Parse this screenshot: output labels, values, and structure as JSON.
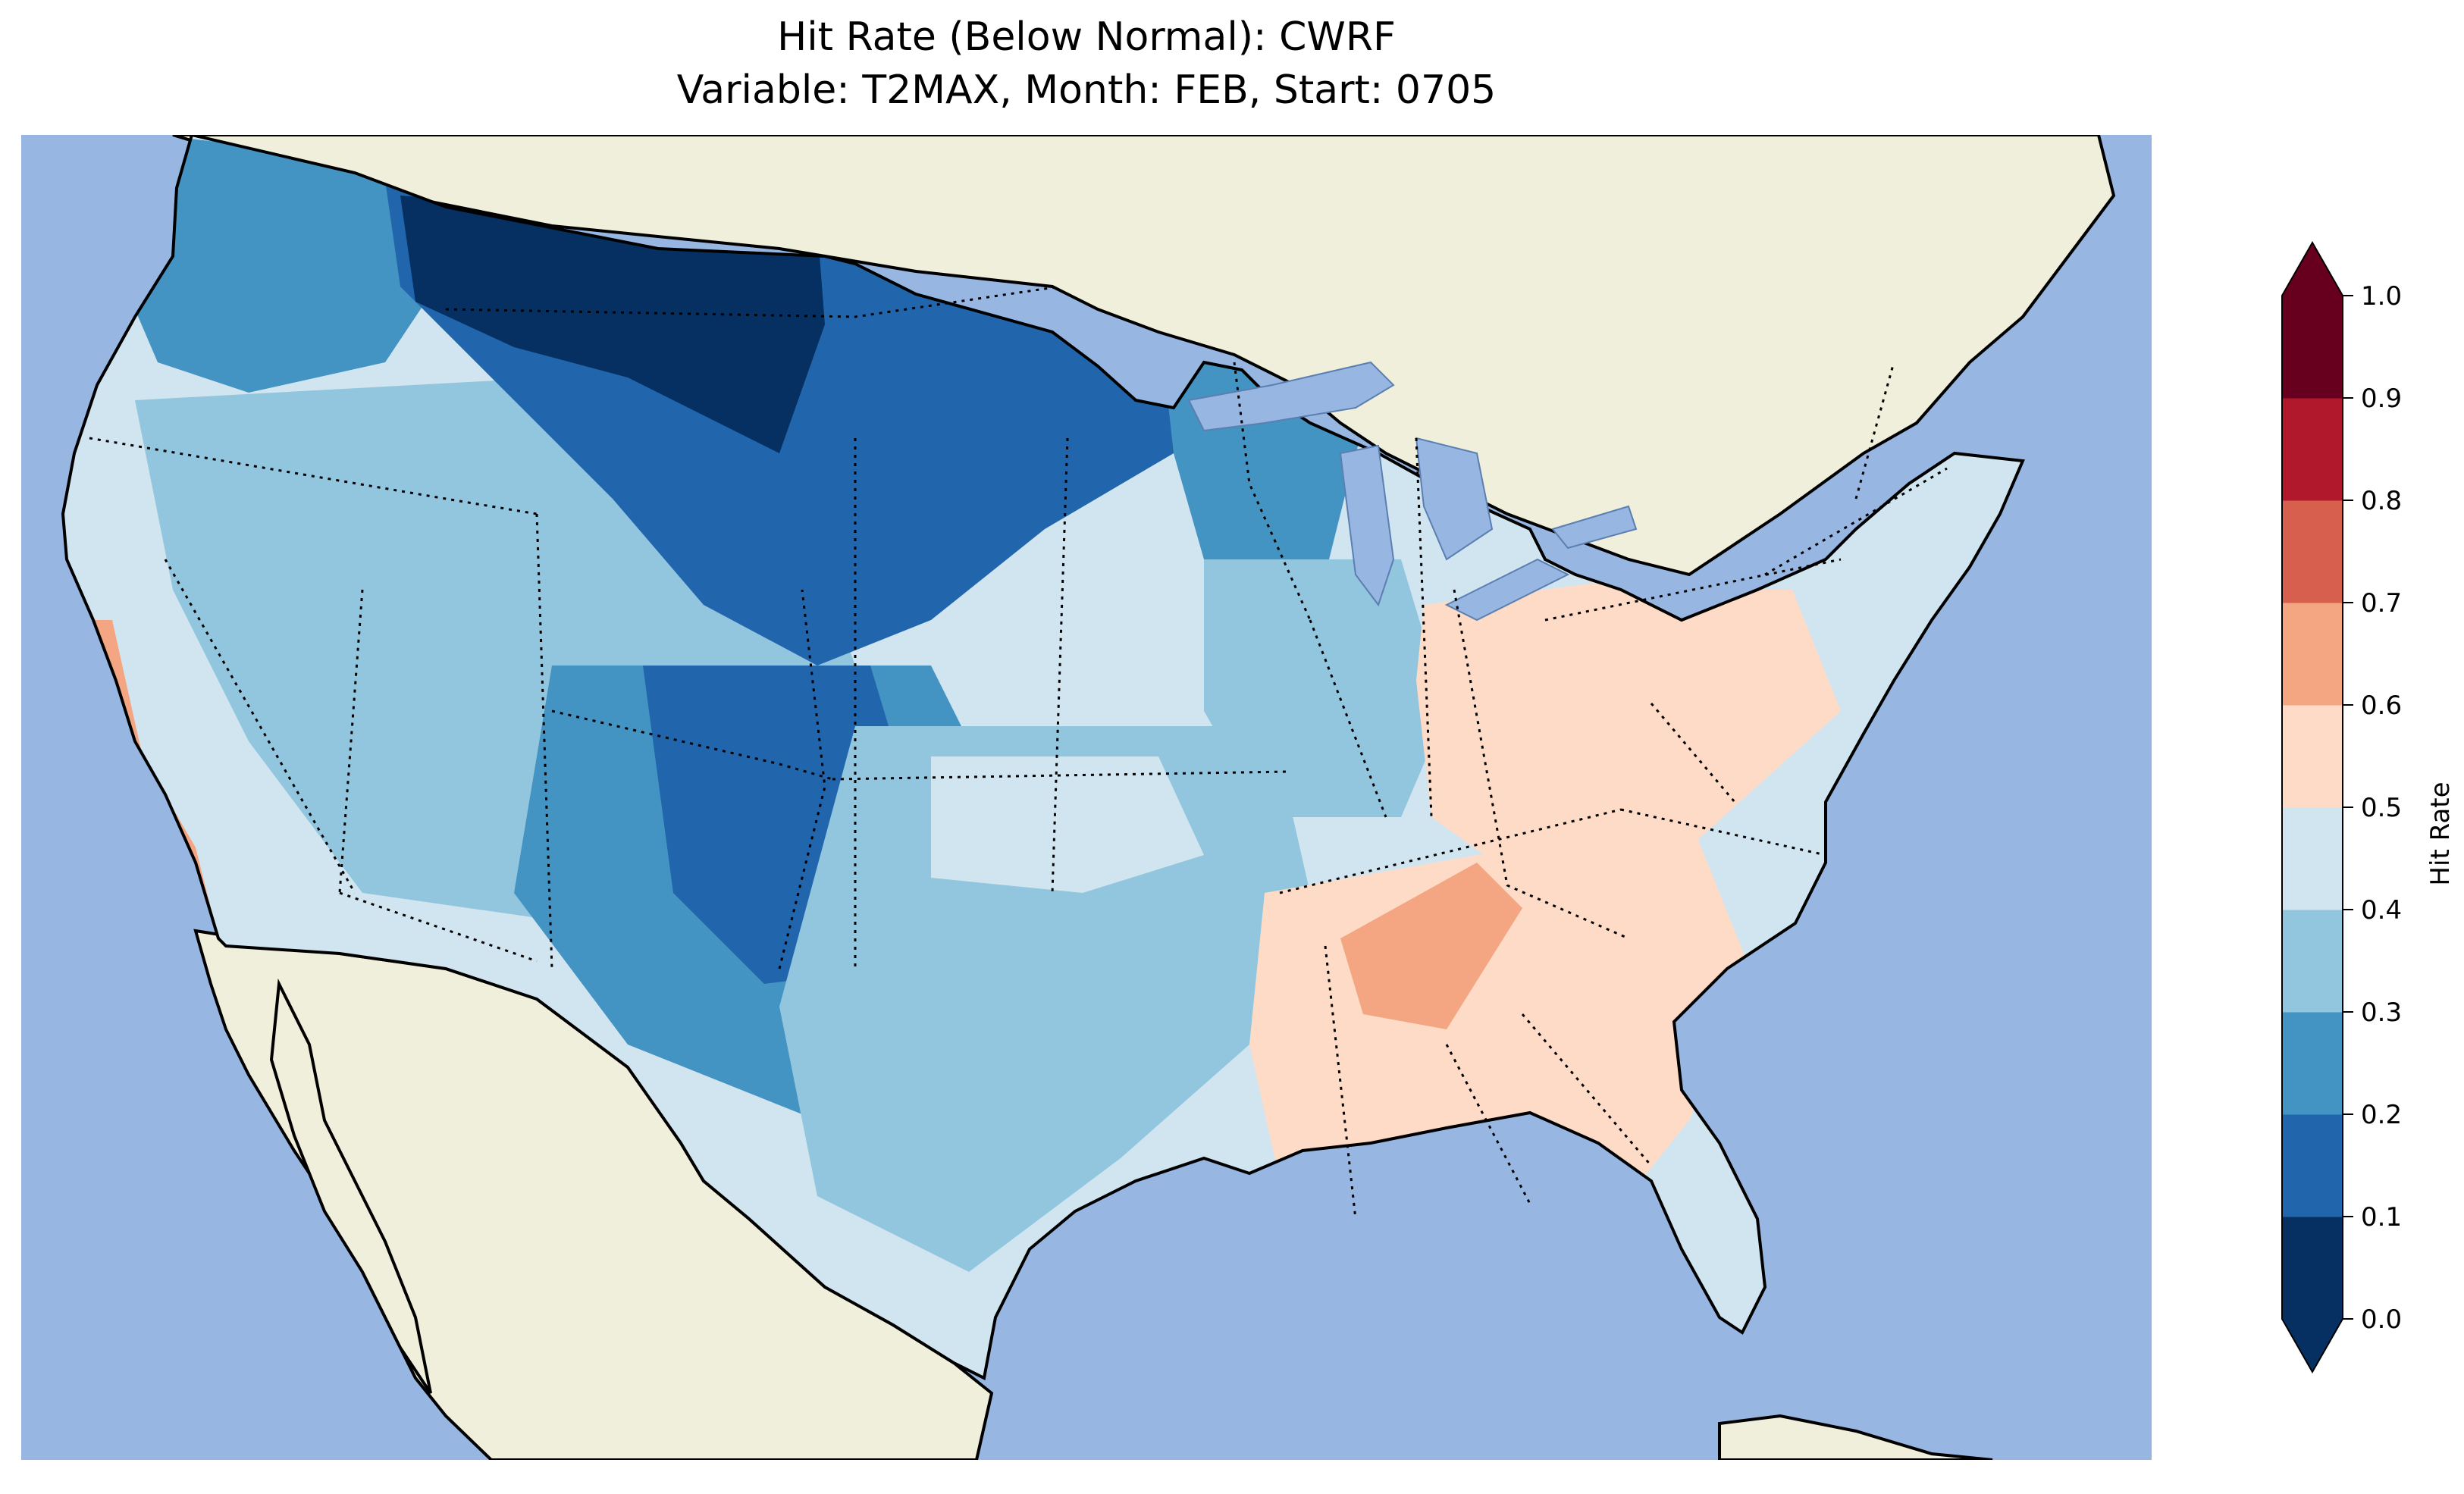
{
  "title": {
    "line1": "Hit Rate (Below Normal): CWRF",
    "line2": "Variable: T2MAX, Month: FEB, Start: 0705"
  },
  "colorbar": {
    "label": "Hit Rate",
    "ticks": [
      "0.0",
      "0.1",
      "0.2",
      "0.3",
      "0.4",
      "0.5",
      "0.6",
      "0.7",
      "0.8",
      "0.9",
      "1.0"
    ],
    "colors": [
      "#053061",
      "#2166ac",
      "#4393c3",
      "#92c5de",
      "#d1e5f0",
      "#fddbc7",
      "#f4a582",
      "#d6604d",
      "#b2182b",
      "#67001f"
    ],
    "extend": "both"
  },
  "map": {
    "ocean_color": "#97b6e1",
    "land_color": "#efefdb",
    "region": "contiguous United States",
    "field": "Hit Rate",
    "regional_values": {
      "pacific_northwest": 0.25,
      "northern_rockies": 0.05,
      "northern_plains": 0.15,
      "upper_midwest": 0.25,
      "great_basin": 0.35,
      "california_coast": 0.6,
      "southwest": 0.4,
      "colorado_new_mexico": 0.15,
      "southern_plains": 0.35,
      "texas": 0.35,
      "midwest": 0.4,
      "ohio_valley": 0.55,
      "appalachia": 0.55,
      "tennessee_alabama": 0.65,
      "southeast": 0.55,
      "florida": 0.55,
      "northeast": 0.45,
      "new_england": 0.45
    }
  }
}
